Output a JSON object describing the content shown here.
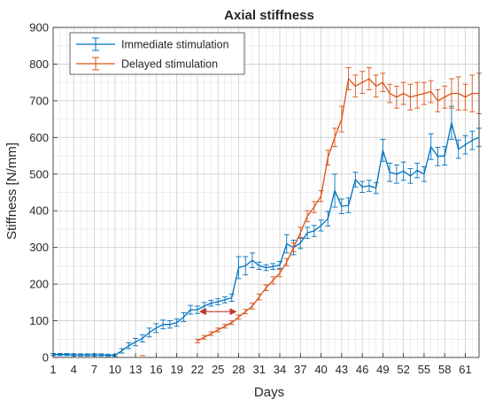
{
  "chart_data": {
    "type": "line",
    "title": "Axial stiffness",
    "xlabel": "Days",
    "ylabel": "Stiffness [N/mm]",
    "xlim": [
      1,
      63
    ],
    "ylim": [
      0,
      900
    ],
    "x_ticks": [
      1,
      4,
      7,
      10,
      13,
      16,
      19,
      22,
      25,
      28,
      31,
      34,
      37,
      40,
      43,
      46,
      49,
      52,
      55,
      58,
      61
    ],
    "y_ticks": [
      0,
      100,
      200,
      300,
      400,
      500,
      600,
      700,
      800,
      900
    ],
    "grid": true,
    "legend_position": "top-left",
    "series": [
      {
        "name": "Immediate stimulation",
        "color": "#0072BD",
        "x": [
          1,
          2,
          3,
          4,
          5,
          6,
          7,
          8,
          9,
          10,
          11,
          12,
          13,
          14,
          15,
          16,
          17,
          18,
          19,
          20,
          21,
          22,
          23,
          24,
          25,
          26,
          27,
          28,
          29,
          30,
          31,
          32,
          33,
          34,
          35,
          36,
          37,
          38,
          39,
          40,
          41,
          42,
          43,
          44,
          45,
          46,
          47,
          48,
          49,
          50,
          51,
          52,
          53,
          54,
          55,
          56,
          57,
          58,
          59,
          60,
          61,
          62,
          63
        ],
        "y": [
          8,
          8,
          8,
          7,
          7,
          7,
          7,
          7,
          6,
          6,
          18,
          32,
          42,
          52,
          68,
          80,
          90,
          90,
          95,
          110,
          130,
          130,
          140,
          148,
          152,
          157,
          163,
          245,
          250,
          265,
          250,
          245,
          248,
          252,
          310,
          300,
          312,
          340,
          345,
          360,
          378,
          455,
          412,
          415,
          485,
          465,
          468,
          462,
          565,
          505,
          500,
          508,
          495,
          510,
          500,
          575,
          548,
          550,
          640,
          568,
          580,
          592,
          600
        ],
        "err": [
          3,
          3,
          3,
          3,
          3,
          3,
          3,
          3,
          3,
          3,
          6,
          8,
          10,
          10,
          12,
          12,
          12,
          10,
          10,
          12,
          12,
          10,
          10,
          8,
          8,
          8,
          10,
          30,
          25,
          20,
          10,
          8,
          8,
          10,
          25,
          20,
          15,
          15,
          15,
          15,
          20,
          45,
          20,
          20,
          20,
          15,
          15,
          15,
          30,
          25,
          25,
          25,
          20,
          20,
          20,
          35,
          25,
          25,
          45,
          25,
          25,
          25,
          25
        ]
      },
      {
        "name": "Delayed stimulation",
        "color": "#D95319",
        "x": [
          22,
          23,
          24,
          25,
          26,
          27,
          28,
          29,
          30,
          31,
          32,
          33,
          34,
          35,
          36,
          37,
          38,
          39,
          40,
          41,
          42,
          43,
          44,
          45,
          46,
          47,
          48,
          49,
          50,
          51,
          52,
          53,
          54,
          55,
          56,
          57,
          58,
          59,
          60,
          61,
          62,
          63
        ],
        "y": [
          45,
          55,
          65,
          75,
          85,
          95,
          110,
          125,
          140,
          165,
          190,
          210,
          230,
          260,
          300,
          340,
          385,
          410,
          440,
          545,
          600,
          650,
          760,
          740,
          750,
          760,
          740,
          750,
          720,
          710,
          720,
          710,
          715,
          720,
          725,
          700,
          710,
          720,
          720,
          710,
          720,
          720
        ],
        "err": [
          5,
          5,
          5,
          5,
          5,
          5,
          6,
          6,
          8,
          8,
          8,
          10,
          10,
          10,
          12,
          15,
          15,
          15,
          15,
          20,
          25,
          35,
          30,
          30,
          30,
          30,
          30,
          25,
          25,
          30,
          30,
          35,
          35,
          30,
          30,
          30,
          30,
          40,
          45,
          35,
          50,
          55
        ]
      }
    ],
    "annotations": [
      {
        "type": "double-arrow",
        "color": "#C0392B",
        "from": [
          22,
          125
        ],
        "to": [
          28,
          125
        ]
      },
      {
        "type": "tick-mark",
        "color": "#D95319",
        "at": [
          14,
          5
        ]
      }
    ]
  }
}
